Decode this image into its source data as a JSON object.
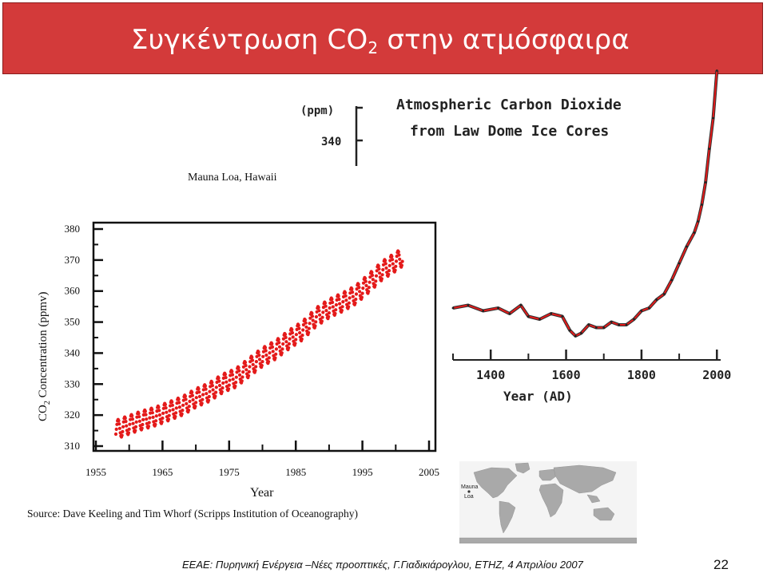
{
  "slide": {
    "title_main": "Συγκέντρωση CO",
    "title_sub": "2",
    "title_rest": " στην ατμόσφαιρα",
    "footer": "ΕΕΑΕ: Πυρηνική Ενέργεια –Νέες προοπτικές,  Γ.Γιαδικιάρογλου, ΕΤΗΖ, 4 Απριλίου 2007",
    "page_number": "22",
    "accent_color": "#d33a3a",
    "series_color": "#e41a1a"
  },
  "chart_data": [
    {
      "id": "mauna-loa",
      "type": "scatter",
      "title": "Mauna Loa, Hawaii",
      "xlabel": "Year",
      "ylabel_main": "CO",
      "ylabel_sub": "2",
      "ylabel_rest": " Concentration (ppmv)",
      "source": "Source: Dave Keeling and Tim Whorf (Scripps Institution of Oceanography)",
      "xlim": [
        1955,
        2005
      ],
      "ylim": [
        310,
        380
      ],
      "xticks": [
        "1955",
        "1965",
        "1975",
        "1985",
        "1995",
        "2005"
      ],
      "yticks": [
        "310",
        "320",
        "330",
        "340",
        "350",
        "360",
        "370",
        "380"
      ],
      "annual_mean": {
        "x": [
          1958,
          1960,
          1962,
          1964,
          1966,
          1968,
          1970,
          1972,
          1974,
          1976,
          1978,
          1980,
          1982,
          1984,
          1986,
          1988,
          1990,
          1992,
          1994,
          1996,
          1998,
          2000,
          2001
        ],
        "y": [
          315.3,
          316.9,
          318.4,
          319.6,
          321.3,
          323.0,
          325.5,
          327.4,
          330.2,
          332.0,
          335.4,
          338.7,
          341.1,
          344.4,
          347.2,
          351.5,
          354.4,
          356.4,
          358.8,
          362.6,
          366.7,
          369.4,
          371.0
        ]
      },
      "seasonal_amplitude": 3,
      "show_grid": false
    },
    {
      "id": "law-dome",
      "type": "line",
      "title_line1": "Atmospheric Carbon Dioxide",
      "title_line2": "from Law Dome Ice Cores",
      "ylabel": "(ppm)",
      "ytick_label": "340",
      "xlabel": "Year (AD)",
      "xticks": [
        "1400",
        "1600",
        "1800",
        "2000"
      ],
      "xlim": [
        1300,
        2010
      ],
      "x": [
        1300,
        1340,
        1380,
        1420,
        1450,
        1480,
        1500,
        1530,
        1560,
        1590,
        1610,
        1625,
        1640,
        1660,
        1680,
        1700,
        1720,
        1740,
        1760,
        1780,
        1800,
        1820,
        1840,
        1860,
        1880,
        1900,
        1920,
        1940,
        1950,
        1960,
        1970,
        1980,
        1990,
        2000
      ],
      "y": [
        280,
        281,
        279,
        280,
        278,
        281,
        277,
        276,
        278,
        277,
        272,
        270,
        271,
        274,
        273,
        273,
        275,
        274,
        274,
        276,
        279,
        280,
        283,
        285,
        290,
        296,
        302,
        307,
        311,
        317,
        325,
        337,
        348,
        365
      ],
      "legend_labels": [
        "Mauna",
        "Loa"
      ]
    }
  ]
}
